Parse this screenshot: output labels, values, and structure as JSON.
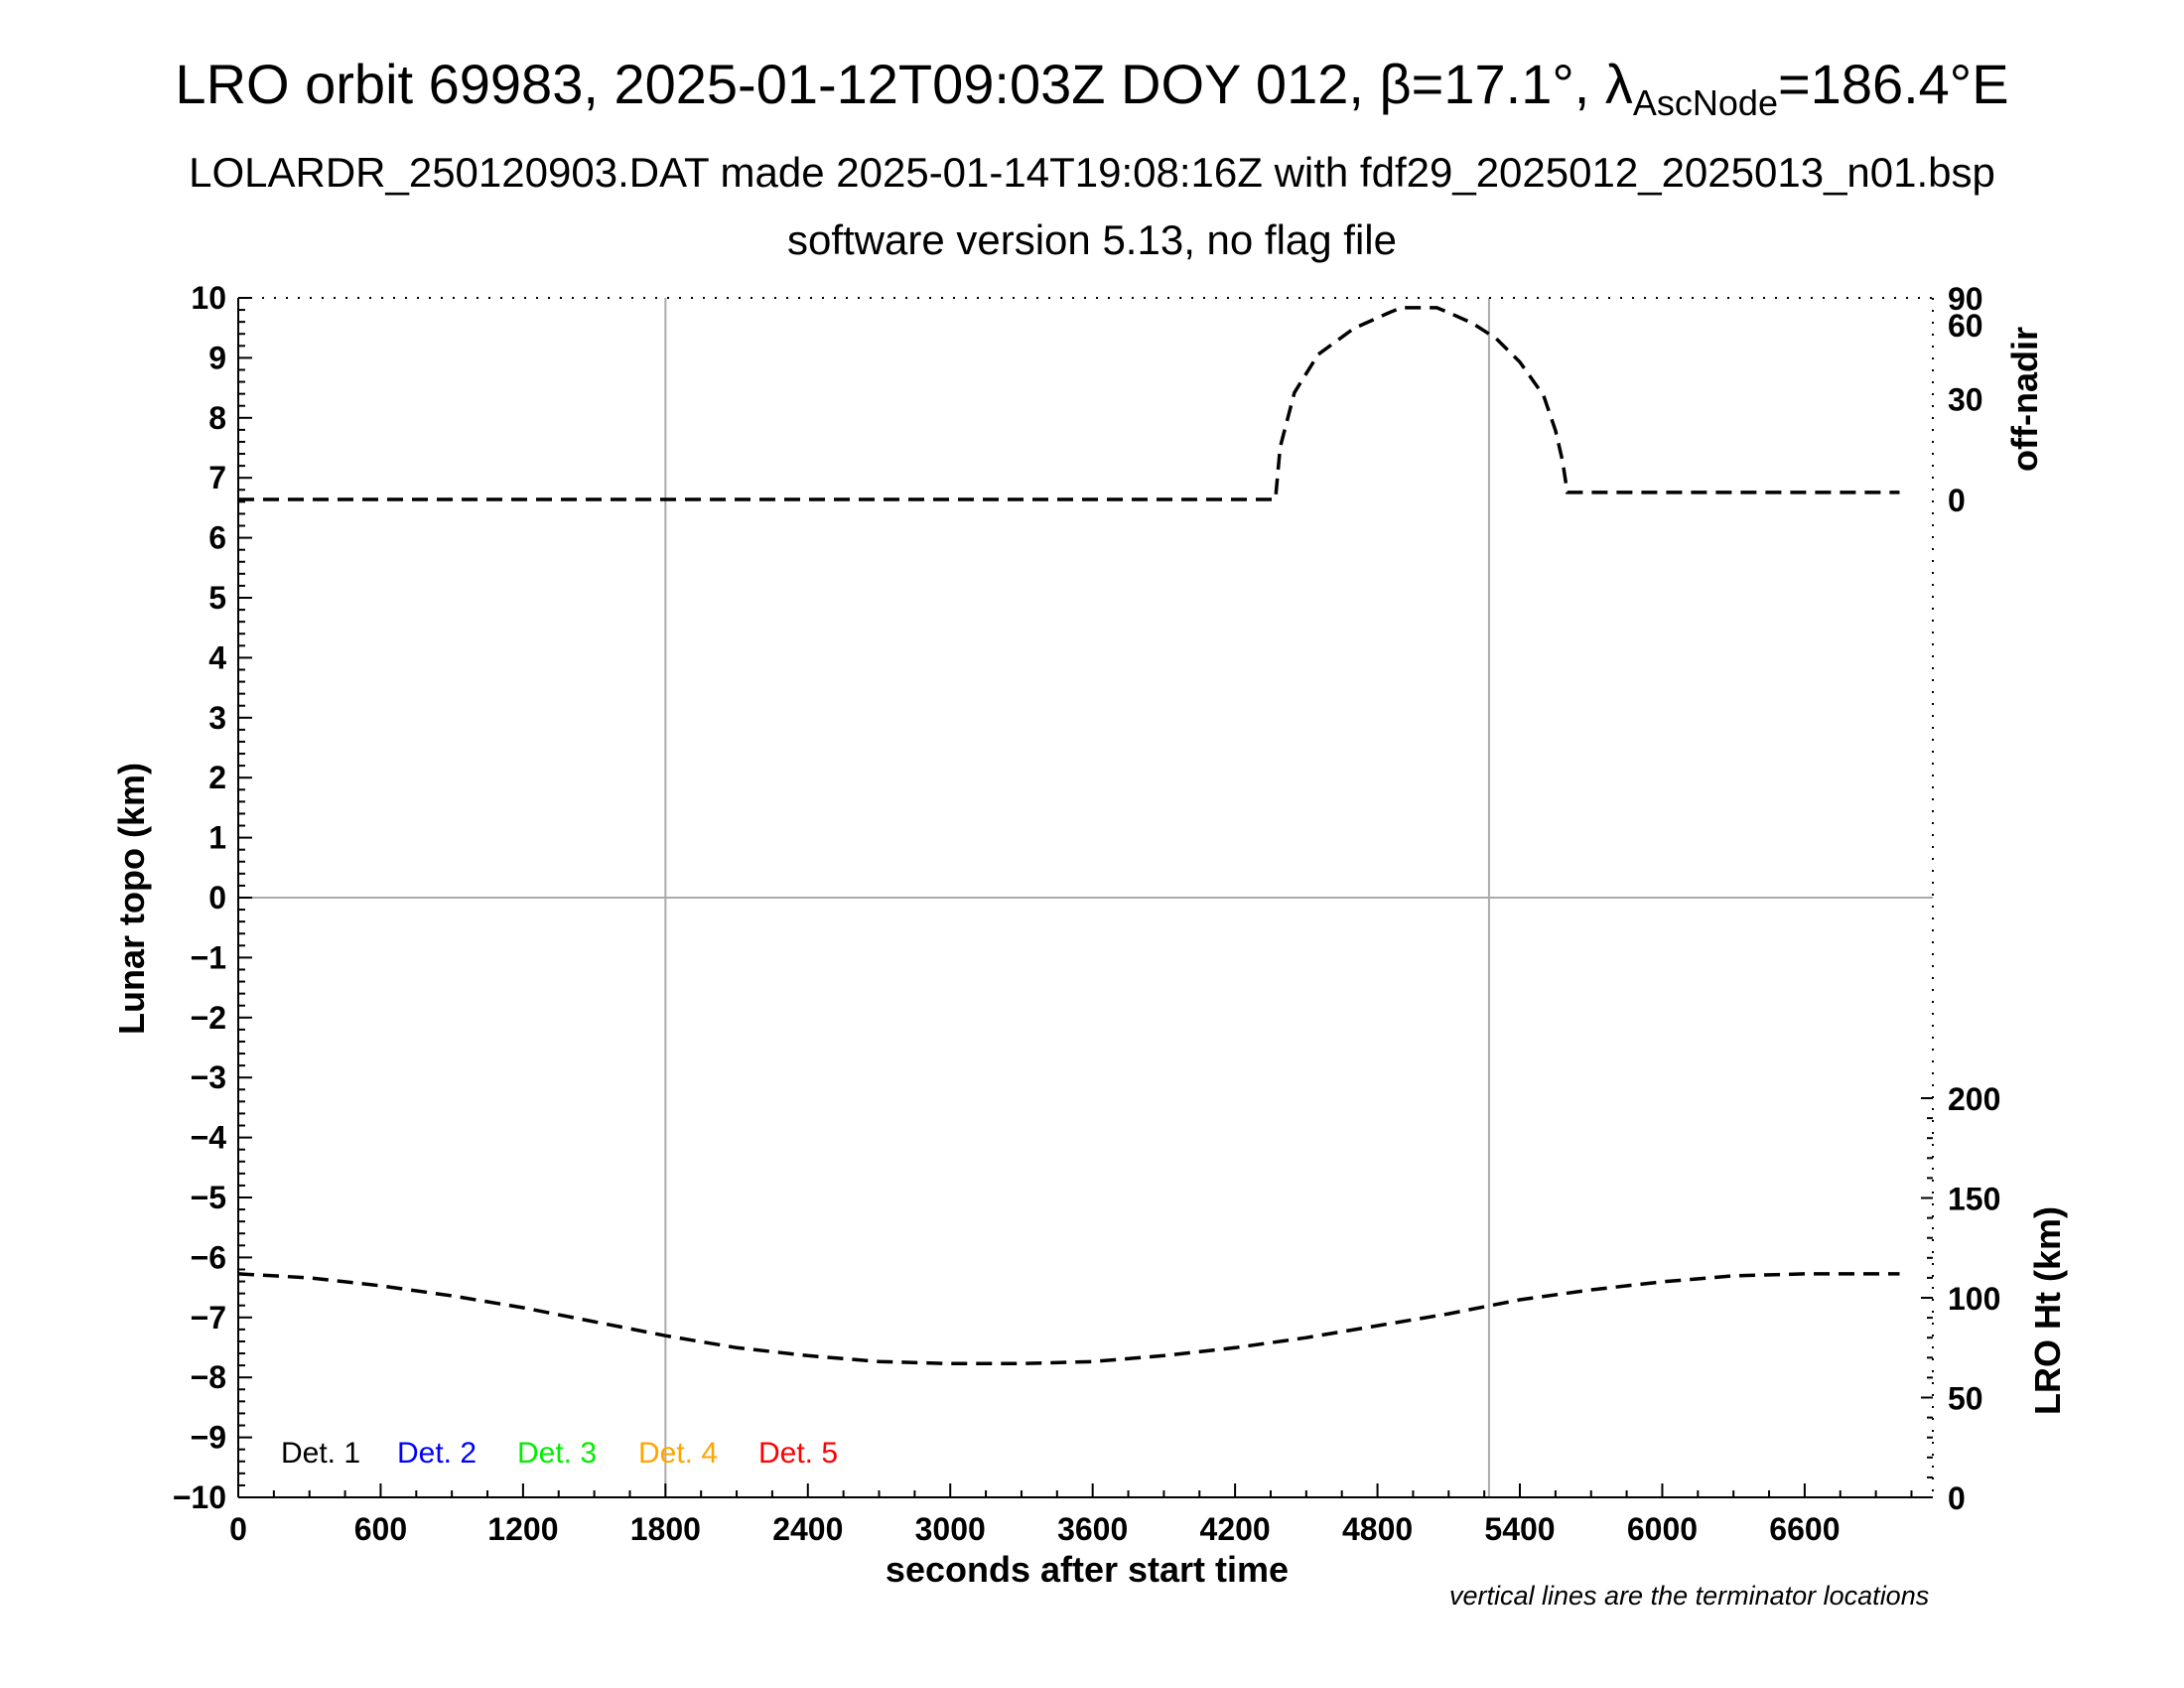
{
  "title": {
    "main_prefix": "LRO orbit 69983, 2025-01-12T09:03Z DOY 012, β=17.1°, λ",
    "main_sub": "AscNode",
    "main_suffix": "=186.4°E",
    "line2": "LOLARDR_250120903.DAT made 2025-01-14T19:08:16Z with fdf29_2025012_2025013_n01.bsp",
    "line3": "software version 5.13, no flag file"
  },
  "note": "vertical lines are the terminator locations",
  "chart_data": {
    "type": "line",
    "xlabel": "seconds after start time",
    "xlim": [
      0,
      7140
    ],
    "xticks": [
      0,
      600,
      1200,
      1800,
      2400,
      3000,
      3600,
      4200,
      4800,
      5400,
      6000,
      6600
    ],
    "ylabel_left": "Lunar topo (km)",
    "ylim_left": [
      -10,
      10
    ],
    "yticks_left": [
      -10,
      -9,
      -8,
      -7,
      -6,
      -5,
      -4,
      -3,
      -2,
      -1,
      0,
      1,
      2,
      3,
      4,
      5,
      6,
      7,
      8,
      9,
      10
    ],
    "ylabel_right_top": "off-nadir",
    "yticks_right_top": [
      0,
      30,
      60,
      90
    ],
    "ylabel_right_bottom": "LRO Ht (km)",
    "yticks_right_bottom": [
      0,
      50,
      100,
      150,
      200
    ],
    "terminators_x": [
      1800,
      5270
    ],
    "zero_line_y": 0,
    "grid": false,
    "legend": {
      "position": "bottom-left",
      "entries": [
        {
          "label": "Det. 1",
          "color": "#000000"
        },
        {
          "label": "Det. 2",
          "color": "#0000ff"
        },
        {
          "label": "Det. 3",
          "color": "#00ee00"
        },
        {
          "label": "Det. 4",
          "color": "#ffa500"
        },
        {
          "label": "Det. 5",
          "color": "#ff0000"
        }
      ]
    },
    "series": [
      {
        "axis": "off-nadir",
        "style": "dashed",
        "x": [
          0,
          4370,
          4390,
          4450,
          4550,
          4700,
          4850,
          4900,
          5050,
          5100,
          5200,
          5300,
          5400,
          5500,
          5550,
          5580,
          5600,
          7000
        ],
        "y": [
          0,
          0,
          15,
          32,
          46,
          58,
          68,
          72,
          72,
          68,
          61,
          53,
          43,
          31,
          20,
          11,
          2,
          2
        ]
      },
      {
        "axis": "LRO Ht",
        "style": "dashed",
        "x": [
          0,
          300,
          600,
          900,
          1200,
          1500,
          1800,
          2100,
          2400,
          2700,
          3000,
          3300,
          3600,
          3900,
          4200,
          4500,
          4800,
          5100,
          5400,
          5700,
          6000,
          6300,
          6600,
          6900,
          7000
        ],
        "y": [
          112,
          110,
          106,
          101,
          95,
          88,
          81,
          75,
          71,
          68,
          67,
          67,
          68,
          71,
          75,
          80,
          86,
          92,
          99,
          104,
          108,
          111,
          112,
          112,
          112
        ]
      }
    ]
  }
}
